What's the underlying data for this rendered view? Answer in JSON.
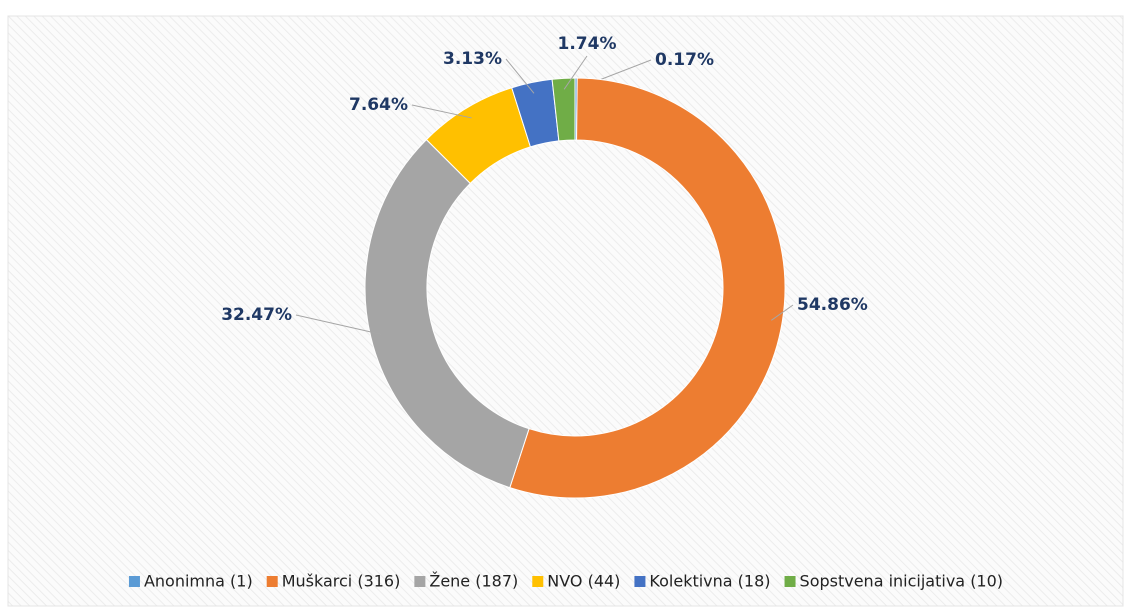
{
  "chart_data": {
    "type": "donut",
    "categories": [
      "Anonimna (1)",
      "Muškarci (316)",
      "Žene (187)",
      "NVO (44)",
      "Kolektivna (18)",
      "Sopstvena inicijativa (10)"
    ],
    "values": [
      0.17,
      54.86,
      32.47,
      7.64,
      3.13,
      1.74
    ],
    "value_labels": [
      "0.17%",
      "54.86%",
      "32.47%",
      "7.64%",
      "3.13%",
      "1.74%"
    ],
    "colors": [
      "#5b9bd5",
      "#ed7d31",
      "#a5a5a5",
      "#ffc000",
      "#4472c4",
      "#70ad47"
    ],
    "legend": "bottom"
  }
}
